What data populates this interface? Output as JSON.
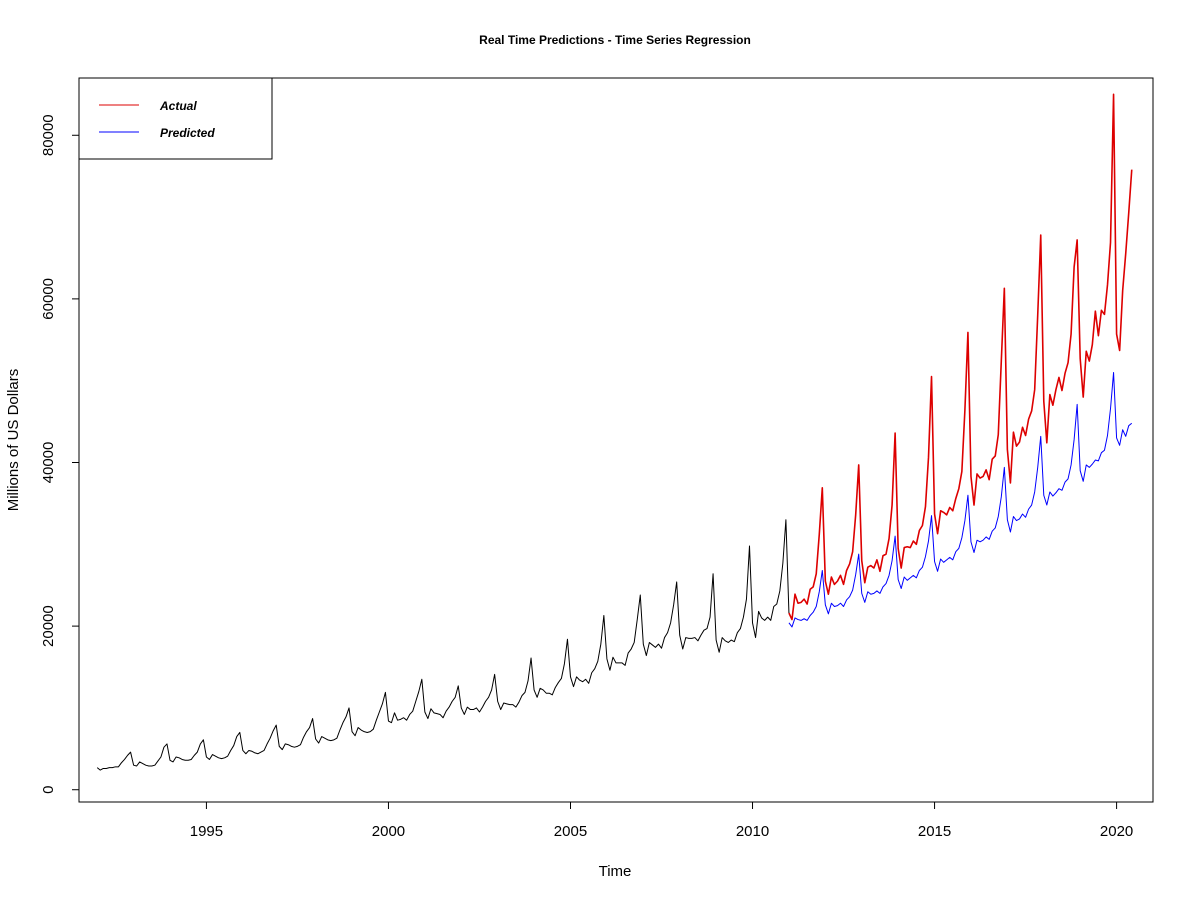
{
  "chart_data": {
    "type": "line",
    "title": "Real Time Predictions - Time Series Regression",
    "xlabel": "Time",
    "ylabel": "Millions of US Dollars",
    "xlim": [
      1991.5,
      2021.0
    ],
    "ylim": [
      -1500,
      87000
    ],
    "x_ticks": [
      1995,
      2000,
      2005,
      2010,
      2015,
      2020
    ],
    "y_ticks": [
      0,
      20000,
      40000,
      60000,
      80000
    ],
    "legend": {
      "placement": "top-left",
      "entries": [
        {
          "label": "Actual",
          "color": "#dd0000"
        },
        {
          "label": "Predicted",
          "color": "#0000ff"
        }
      ]
    },
    "series": [
      {
        "color": "#000000",
        "x_start": 1992.0,
        "step": 0.083333,
        "values": [
          2700,
          2400,
          2600,
          2600,
          2700,
          2700,
          2800,
          2800,
          3300,
          3700,
          4200,
          4600,
          3000,
          2900,
          3400,
          3200,
          3000,
          2900,
          2900,
          3000,
          3500,
          4000,
          5200,
          5600,
          3600,
          3400,
          4000,
          3900,
          3700,
          3600,
          3600,
          3700,
          4200,
          4600,
          5600,
          6100,
          4000,
          3700,
          4300,
          4100,
          3900,
          3800,
          3900,
          4100,
          4800,
          5400,
          6500,
          7000,
          4800,
          4400,
          4800,
          4700,
          4500,
          4400,
          4600,
          4800,
          5600,
          6300,
          7200,
          7900,
          5300,
          4900,
          5600,
          5500,
          5300,
          5200,
          5300,
          5500,
          6400,
          7100,
          7600,
          8700,
          6200,
          5700,
          6500,
          6300,
          6100,
          6000,
          6100,
          6300,
          7300,
          8200,
          8900,
          10000,
          7100,
          6600,
          7600,
          7300,
          7100,
          7000,
          7100,
          7400,
          8500,
          9500,
          10500,
          11900,
          8400,
          8200,
          9400,
          8500,
          8600,
          8800,
          8500,
          9200,
          9600,
          10800,
          12000,
          13500,
          9500,
          8700,
          9900,
          9400,
          9300,
          9200,
          8800,
          9600,
          10100,
          10800,
          11300,
          12700,
          10000,
          9200,
          10100,
          9800,
          9800,
          10000,
          9500,
          10100,
          10800,
          11300,
          12200,
          14100,
          10800,
          9800,
          10600,
          10500,
          10400,
          10400,
          10100,
          10700,
          11500,
          11900,
          13300,
          16100,
          12200,
          11300,
          12400,
          12200,
          11800,
          11800,
          11600,
          12500,
          13100,
          13600,
          15400,
          18400,
          13800,
          12600,
          13800,
          13400,
          13200,
          13500,
          13000,
          14300,
          14800,
          15700,
          17800,
          21300,
          16000,
          14600,
          16200,
          15500,
          15500,
          15500,
          15200,
          16700,
          17200,
          18000,
          20800,
          23800,
          17800,
          16400,
          18000,
          17700,
          17400,
          17800,
          17300,
          18600,
          19200,
          20400,
          22600,
          25400,
          18900,
          17200,
          18600,
          18500,
          18500,
          18600,
          18200,
          18900,
          19500,
          19700,
          21100,
          26400,
          18300,
          16800,
          18600,
          18200,
          18000,
          18300,
          18100,
          19200,
          19700,
          21100,
          23300,
          29800,
          20400,
          18600,
          21800,
          21000,
          20700,
          21100,
          20700,
          22400,
          22700,
          24300,
          27700,
          33000,
          21600
        ]
      },
      {
        "name": "Actual",
        "color": "#dd0000",
        "x_start": 2011.0,
        "step": 0.083333,
        "values": [
          21600,
          20800,
          23900,
          22800,
          22900,
          23300,
          22700,
          24500,
          24800,
          26400,
          31200,
          36900,
          25500,
          23900,
          26000,
          25100,
          25500,
          26200,
          25100,
          26800,
          27600,
          29100,
          33600,
          39700,
          28000,
          25300,
          27200,
          27400,
          27100,
          28100,
          26700,
          28600,
          28800,
          30700,
          34800,
          43600,
          29500,
          27100,
          29600,
          29700,
          29600,
          30400,
          30000,
          31700,
          32300,
          34600,
          40600,
          50500,
          33700,
          31300,
          34100,
          33900,
          33600,
          34500,
          34100,
          35600,
          36800,
          38900,
          46400,
          55900,
          38300,
          34800,
          38600,
          38100,
          38300,
          39100,
          37900,
          40400,
          40800,
          43400,
          52400,
          61300,
          41600,
          37500,
          43700,
          42000,
          42500,
          44300,
          43300,
          45300,
          46300,
          48900,
          58000,
          67800,
          47500,
          42400,
          48300,
          47000,
          48900,
          50400,
          48800,
          50900,
          52200,
          55700,
          63900,
          67200,
          52700,
          48000,
          53600,
          52400,
          54400,
          58500,
          55500,
          58600,
          58100,
          61700,
          66900,
          85000,
          55700,
          53700,
          61000,
          65500,
          70500,
          75800
        ]
      },
      {
        "name": "Predicted",
        "color": "#0000ff",
        "x_start": 2011.0,
        "step": 0.083333,
        "values": [
          20400,
          19900,
          21000,
          20800,
          20700,
          20900,
          20700,
          21300,
          21700,
          22400,
          24200,
          26800,
          22600,
          21500,
          22800,
          22400,
          22500,
          22800,
          22400,
          23200,
          23600,
          24400,
          26300,
          28800,
          24000,
          22900,
          24200,
          23900,
          24000,
          24300,
          24000,
          24800,
          25200,
          26200,
          28000,
          31000,
          25700,
          24600,
          26000,
          25600,
          25900,
          26200,
          25900,
          26800,
          27200,
          28500,
          30400,
          33500,
          27900,
          26700,
          28200,
          27800,
          28100,
          28400,
          28100,
          29100,
          29500,
          30800,
          32900,
          36000,
          30300,
          29000,
          30500,
          30300,
          30500,
          30900,
          30600,
          31600,
          32000,
          33400,
          35800,
          39400,
          33000,
          31500,
          33400,
          32900,
          33100,
          33700,
          33300,
          34300,
          34800,
          36400,
          39400,
          43200,
          36000,
          34800,
          36400,
          35900,
          36300,
          36800,
          36600,
          37600,
          38000,
          39700,
          42800,
          47100,
          39000,
          37700,
          39700,
          39400,
          39800,
          40300,
          40200,
          41200,
          41500,
          43300,
          46600,
          51000,
          43000,
          42100,
          44000,
          43200,
          44500,
          44800
        ]
      }
    ]
  }
}
